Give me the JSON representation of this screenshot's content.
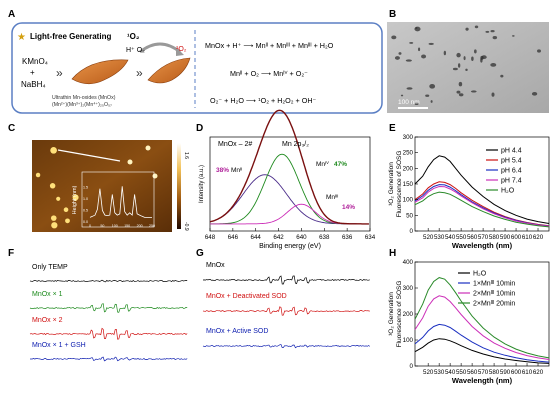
{
  "panel_letters": {
    "a": "A",
    "b": "B",
    "c": "C",
    "d": "D",
    "e": "E",
    "f": "F",
    "g": "G",
    "h": "H"
  },
  "panel_a": {
    "header": "Light-free Generating",
    "header_species": "¹O₂",
    "reagent1": "KMnO₄",
    "plus": "+",
    "reagent2": "NaBH₄",
    "product_line1": "Ultrathin Mn-oxides (MnOx)",
    "product_line2": "(Mn²⁺)(Mn³⁺)₂(Mn⁴⁺)₂₅O₅₇",
    "h_o2": "H⁺ O₂",
    "singlet": "¹O₂",
    "reaction1": "MnOx + H⁺ ⟶ Mnᴵᴵ + Mnᴵᴵᴵ + Mnᴵᴵᴵ + H₂O",
    "reaction2": "Mnᴵᴵ + O₂ ⟶ Mnᴵⱽ + O₂⁻",
    "reaction3": "O₂⁻ + H₂O ⟶ ¹O₂ + H₂O₂ + OH⁻"
  },
  "panel_b": {
    "scale_label": "100 nm"
  },
  "panel_c": {
    "scale_max": "1.6",
    "scale_min": "-0.9",
    "inset_ylabel": "Height (nm)"
  },
  "panel_d": {
    "label": "MnOx – 2#",
    "peak_label": "Mn 2p₃/₂",
    "mn2": "Mnᴵᴵ",
    "mn2_pct": "38%",
    "mn4": "Mnᴵⱽ",
    "mn4_pct": "47%",
    "mn3": "Mnᴵᴵᴵ",
    "mn3_pct": "14%",
    "colors": {
      "envelope": "#7a1010",
      "mn2": "#4b2d8a",
      "mn4": "#1f8a1f",
      "mn3": "#cc2fb8",
      "pct_mn2": "#b0209a",
      "pct_mn4": "#1f8a1f",
      "pct_mn3": "#b0209a"
    }
  },
  "panel_f": {
    "traces": [
      {
        "label": "Only TEMP",
        "color": "#000000"
      },
      {
        "label": "MnOx × 1",
        "color": "#1c8a1c"
      },
      {
        "label": "MnOx × 2",
        "color": "#d01010"
      },
      {
        "label": "MnOx × 1 + GSH",
        "color": "#1020b0"
      }
    ]
  },
  "panel_g": {
    "traces": [
      {
        "label": "MnOx",
        "color": "#000000"
      },
      {
        "label": "MnOx + Deactivated SOD",
        "color": "#d01010"
      },
      {
        "label": "MnOx + Active SOD",
        "color": "#1020b0"
      }
    ]
  },
  "chart_data": [
    {
      "id": "E",
      "type": "line",
      "xlabel": "Wavelength (nm)",
      "ylabel": "¹O₂ Generation\nFluorescence of SOSG",
      "xlim": [
        508,
        630
      ],
      "ylim": [
        0,
        300
      ],
      "xticks": [
        520,
        530,
        540,
        550,
        560,
        570,
        580,
        590,
        600,
        610,
        620
      ],
      "yticks": [
        0,
        50,
        100,
        150,
        200,
        250,
        300
      ],
      "legend_position": "top-right",
      "x": [
        508,
        515,
        520,
        525,
        530,
        535,
        540,
        545,
        550,
        560,
        570,
        580,
        590,
        600,
        610,
        620,
        630
      ],
      "series": [
        {
          "name": "pH 4.4",
          "color": "#000000",
          "values": [
            150,
            175,
            205,
            228,
            240,
            236,
            222,
            200,
            178,
            140,
            110,
            85,
            65,
            50,
            38,
            30,
            24
          ]
        },
        {
          "name": "pH 5.4",
          "color": "#cc1111",
          "values": [
            100,
            118,
            138,
            150,
            157,
            155,
            148,
            136,
            122,
            98,
            78,
            60,
            46,
            35,
            27,
            21,
            17
          ]
        },
        {
          "name": "pH 6.4",
          "color": "#1a2fc0",
          "values": [
            96,
            112,
            130,
            142,
            148,
            147,
            140,
            129,
            116,
            93,
            74,
            57,
            44,
            34,
            26,
            20,
            16
          ]
        },
        {
          "name": "pH 7.4",
          "color": "#cc2fb8",
          "values": [
            92,
            106,
            124,
            136,
            142,
            141,
            134,
            124,
            112,
            90,
            71,
            55,
            42,
            32,
            25,
            19,
            15
          ]
        },
        {
          "name": "H₂O",
          "color": "#2a8a2a",
          "values": [
            84,
            96,
            110,
            119,
            124,
            122,
            117,
            108,
            98,
            78,
            62,
            48,
            37,
            28,
            22,
            17,
            13
          ]
        }
      ]
    },
    {
      "id": "H",
      "type": "line",
      "xlabel": "Wavelength (nm)",
      "ylabel": "¹O₂ Generation\nFluorescence of SOSG",
      "xlim": [
        508,
        630
      ],
      "ylim": [
        0,
        400
      ],
      "xticks": [
        520,
        530,
        540,
        550,
        560,
        570,
        580,
        590,
        600,
        610,
        620
      ],
      "yticks": [
        0,
        100,
        200,
        300,
        400
      ],
      "legend_position": "top-right",
      "x": [
        508,
        515,
        520,
        525,
        530,
        535,
        540,
        545,
        550,
        560,
        570,
        580,
        590,
        600,
        610,
        620,
        630
      ],
      "series": [
        {
          "name": "H₂O",
          "color": "#000000",
          "values": [
            55,
            72,
            88,
            100,
            105,
            103,
            97,
            88,
            78,
            60,
            46,
            35,
            27,
            21,
            16,
            12,
            10
          ]
        },
        {
          "name": "1×Mnᴵᴵᴵ 10min",
          "color": "#1a2fc0",
          "values": [
            85,
            110,
            135,
            152,
            160,
            157,
            148,
            134,
            119,
            92,
            70,
            53,
            41,
            32,
            24,
            19,
            15
          ]
        },
        {
          "name": "2×Mnᴵᴵᴵ 10min",
          "color": "#cc2fb8",
          "values": [
            140,
            185,
            230,
            258,
            270,
            265,
            248,
            224,
            198,
            152,
            116,
            88,
            68,
            52,
            40,
            31,
            25
          ]
        },
        {
          "name": "2×Mnᴵᴵᴵ 20min",
          "color": "#2a8a2a",
          "values": [
            180,
            238,
            292,
            325,
            340,
            334,
            312,
            282,
            250,
            192,
            146,
            111,
            85,
            65,
            50,
            39,
            31
          ]
        }
      ]
    },
    {
      "id": "D",
      "type": "line",
      "xlabel": "Binding energy (eV)",
      "ylabel": "Intensity (a.u.)",
      "xlim": [
        648,
        634
      ],
      "xticks": [
        648,
        646,
        644,
        642,
        640,
        638,
        636,
        634
      ],
      "peaks": [
        {
          "name": "Mnᴵᴵ",
          "center": 643.2,
          "width": 1.9,
          "height": 0.55
        },
        {
          "name": "Mnᴵⱽ",
          "center": 641.7,
          "width": 1.5,
          "height": 0.78
        },
        {
          "name": "Mnᴵᴵᴵ",
          "center": 640.0,
          "width": 1.2,
          "height": 0.22
        }
      ],
      "background": 0.08
    },
    {
      "id": "C-inset",
      "type": "line",
      "ylabel": "Height (nm)",
      "xlim": [
        0,
        250
      ],
      "ylim": [
        0,
        2.0
      ],
      "xticks": [
        0,
        50,
        100,
        150,
        200,
        250
      ],
      "yticks": [
        0.0,
        0.5,
        1.0,
        1.5
      ],
      "x": [
        0,
        10,
        20,
        30,
        40,
        50,
        60,
        70,
        80,
        90,
        100,
        110,
        120,
        130,
        140,
        150,
        160,
        170,
        180,
        190,
        200,
        210,
        220,
        230,
        240,
        250
      ],
      "values": [
        0.2,
        0.25,
        0.3,
        0.55,
        1.45,
        0.5,
        0.3,
        0.28,
        0.3,
        1.2,
        0.4,
        0.3,
        0.35,
        1.55,
        0.45,
        0.3,
        0.4,
        0.3,
        1.2,
        0.35,
        0.3,
        0.25,
        0.2,
        0.2,
        0.2,
        0.2
      ]
    }
  ]
}
